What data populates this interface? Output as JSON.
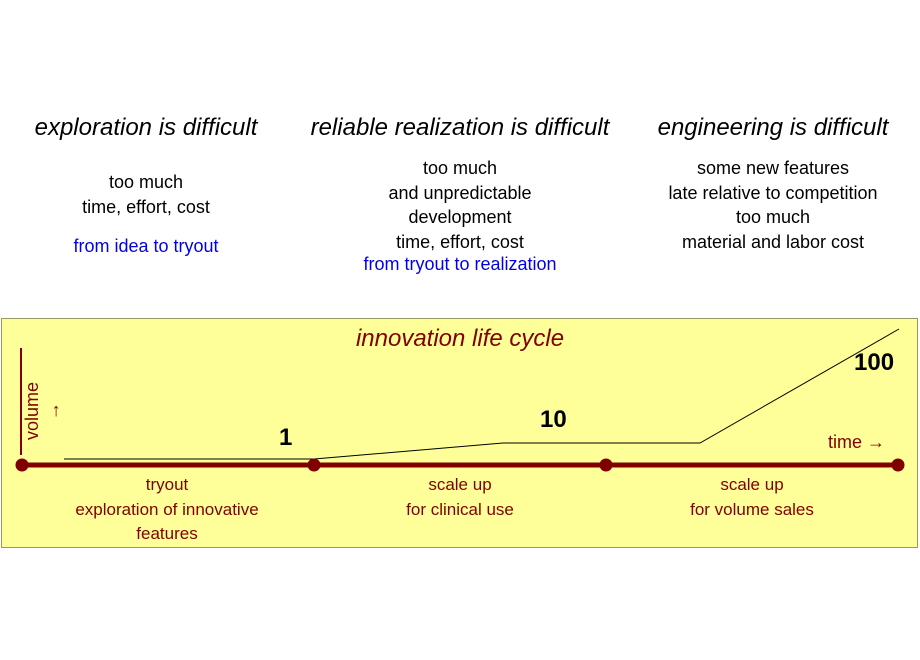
{
  "columns": [
    {
      "heading": "exploration is difficult",
      "lines": [
        "too much",
        "time, effort, cost"
      ],
      "note": "from idea to tryout"
    },
    {
      "heading": "reliable realization is difficult",
      "lines": [
        "too much",
        "and unpredictable",
        "development",
        "time, effort, cost"
      ],
      "note": "from tryout to realization"
    },
    {
      "heading": "engineering is difficult",
      "lines": [
        "some new features",
        "late relative to competition",
        "too much",
        "material and labor cost"
      ],
      "note": ""
    }
  ],
  "lifecycle": {
    "title": "innovation life cycle",
    "y_axis_label": "volume",
    "x_axis_label": "time",
    "volumes": [
      "1",
      "10",
      "100"
    ],
    "phases": [
      [
        "tryout",
        "exploration of innovative",
        "features"
      ],
      [
        "scale up",
        "for clinical use"
      ],
      [
        "scale up",
        "for volume sales"
      ]
    ],
    "colors": {
      "panel_bg": "#ffff99",
      "timeline": "#800000",
      "heading_text": "#000000",
      "note_text": "#0000ee"
    }
  }
}
